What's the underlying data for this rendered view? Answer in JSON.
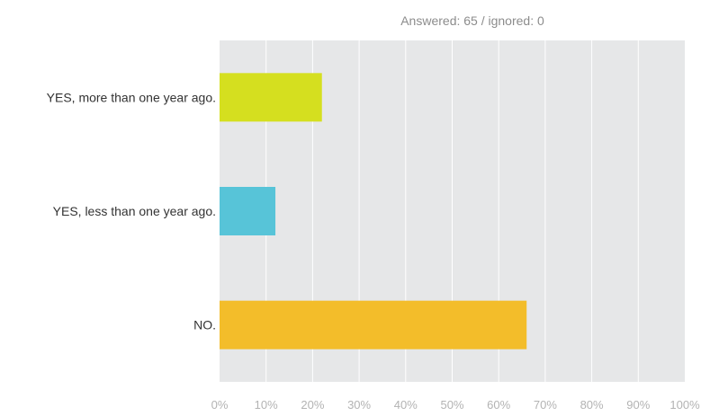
{
  "chart_data": {
    "type": "bar",
    "orientation": "horizontal",
    "subtitle": "Answered: 65 / ignored: 0",
    "categories": [
      "YES, more than one year ago.",
      "YES, less than one year ago.",
      "NO."
    ],
    "values": [
      22,
      12,
      66
    ],
    "unit": "%",
    "xlim": [
      0,
      100
    ],
    "x_ticks": [
      "0%",
      "10%",
      "20%",
      "30%",
      "40%",
      "50%",
      "60%",
      "70%",
      "80%",
      "90%",
      "100%"
    ],
    "grid": true,
    "colors": [
      "#d5df1f",
      "#57c4d8",
      "#f3bd2a"
    ],
    "plot_background": "#e6e7e8",
    "gridline_color": "#ffffff"
  }
}
